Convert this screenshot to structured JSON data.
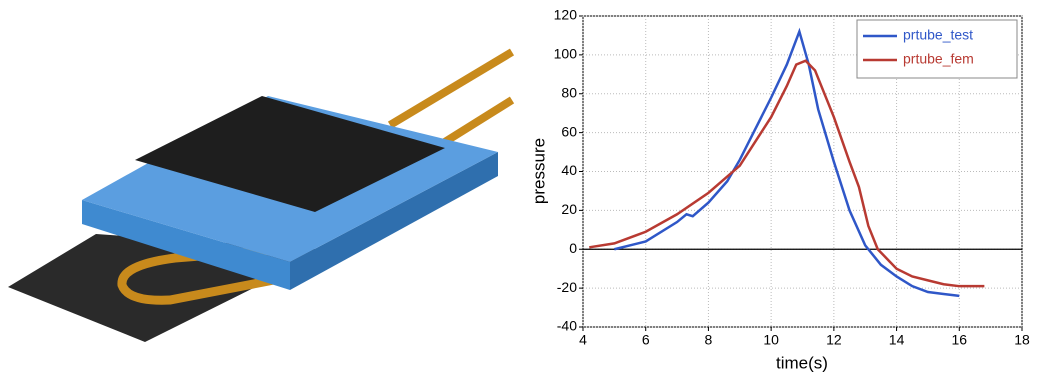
{
  "chart_data": {
    "type": "line",
    "xlabel": "time(s)",
    "ylabel": "pressure",
    "xlim": [
      4,
      18
    ],
    "xticks": [
      4,
      6,
      8,
      10,
      12,
      14,
      16,
      18
    ],
    "ylim": [
      -40,
      120
    ],
    "yticks": [
      -40,
      -20,
      0,
      20,
      40,
      60,
      80,
      100,
      120
    ],
    "grid": true,
    "zero_line": true,
    "legend": "top-right",
    "series": [
      {
        "name": "prtube_test",
        "color": "#2f57c8",
        "x": [
          5,
          6,
          7,
          7.3,
          7.5,
          8,
          8.6,
          9,
          9.5,
          10,
          10.5,
          10.9,
          11.2,
          11.5,
          12,
          12.5,
          13,
          13.5,
          14,
          14.5,
          15,
          15.5,
          16
        ],
        "values": [
          0,
          4,
          14,
          18,
          17,
          24,
          35,
          46,
          62,
          78,
          95,
          112,
          95,
          72,
          45,
          20,
          2,
          -8,
          -14,
          -19,
          -22,
          -23,
          -24
        ]
      },
      {
        "name": "prtube_fem",
        "color": "#b83a32",
        "x": [
          4.2,
          5,
          6,
          7,
          8,
          9,
          10,
          10.5,
          10.8,
          11.1,
          11.4,
          12,
          12.5,
          12.8,
          13.1,
          13.4,
          14,
          14.5,
          15,
          15.5,
          16,
          16.8
        ],
        "values": [
          1,
          3,
          9,
          18,
          29,
          43,
          68,
          84,
          95,
          97,
          92,
          68,
          45,
          32,
          12,
          0,
          -10,
          -14,
          -16,
          -18,
          -19,
          -19
        ]
      }
    ]
  }
}
